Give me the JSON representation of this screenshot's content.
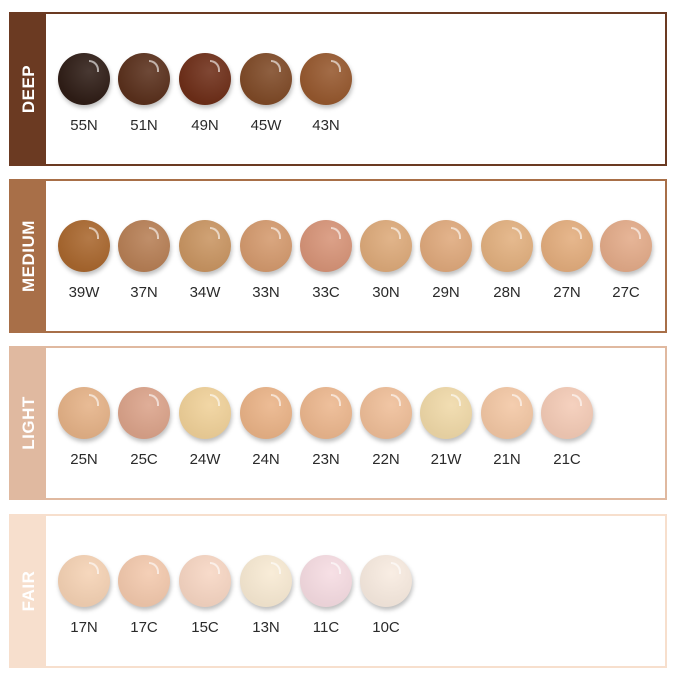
{
  "groups": [
    {
      "name": "DEEP",
      "color": "#6b3a22",
      "shades": [
        {
          "code": "55N",
          "color": "#2f1d16"
        },
        {
          "code": "51N",
          "color": "#5a301c"
        },
        {
          "code": "49N",
          "color": "#6e2e18"
        },
        {
          "code": "45W",
          "color": "#7f4a27"
        },
        {
          "code": "43N",
          "color": "#96582e"
        }
      ]
    },
    {
      "name": "MEDIUM",
      "color": "#a86f48",
      "shades": [
        {
          "code": "39W",
          "color": "#a9672e"
        },
        {
          "code": "37N",
          "color": "#b77f55"
        },
        {
          "code": "34W",
          "color": "#c99562"
        },
        {
          "code": "33N",
          "color": "#d49a6e"
        },
        {
          "code": "33C",
          "color": "#d79478"
        },
        {
          "code": "30N",
          "color": "#ddaa7a"
        },
        {
          "code": "29N",
          "color": "#dfa97c"
        },
        {
          "code": "28N",
          "color": "#e2b07f"
        },
        {
          "code": "27N",
          "color": "#e3ad7d"
        },
        {
          "code": "27C",
          "color": "#e3ab89"
        }
      ]
    },
    {
      "name": "LIGHT",
      "color": "#e0b9a0",
      "shades": [
        {
          "code": "25N",
          "color": "#e5b287"
        },
        {
          "code": "25C",
          "color": "#dba38a"
        },
        {
          "code": "24W",
          "color": "#f0d199"
        },
        {
          "code": "24N",
          "color": "#eab387"
        },
        {
          "code": "23N",
          "color": "#ecb78e"
        },
        {
          "code": "22N",
          "color": "#efbe98"
        },
        {
          "code": "21W",
          "color": "#f0d9a8"
        },
        {
          "code": "21N",
          "color": "#f3c7a4"
        },
        {
          "code": "21C",
          "color": "#f4cbb6"
        }
      ]
    },
    {
      "name": "FAIR",
      "color": "#f7dfcd",
      "shades": [
        {
          "code": "17N",
          "color": "#f5d2b4"
        },
        {
          "code": "17C",
          "color": "#f3c9ad"
        },
        {
          "code": "15C",
          "color": "#f7d6c3"
        },
        {
          "code": "13N",
          "color": "#f8ead3"
        },
        {
          "code": "11C",
          "color": "#f6dce2"
        },
        {
          "code": "10C",
          "color": "#f8ebe0"
        }
      ]
    }
  ]
}
